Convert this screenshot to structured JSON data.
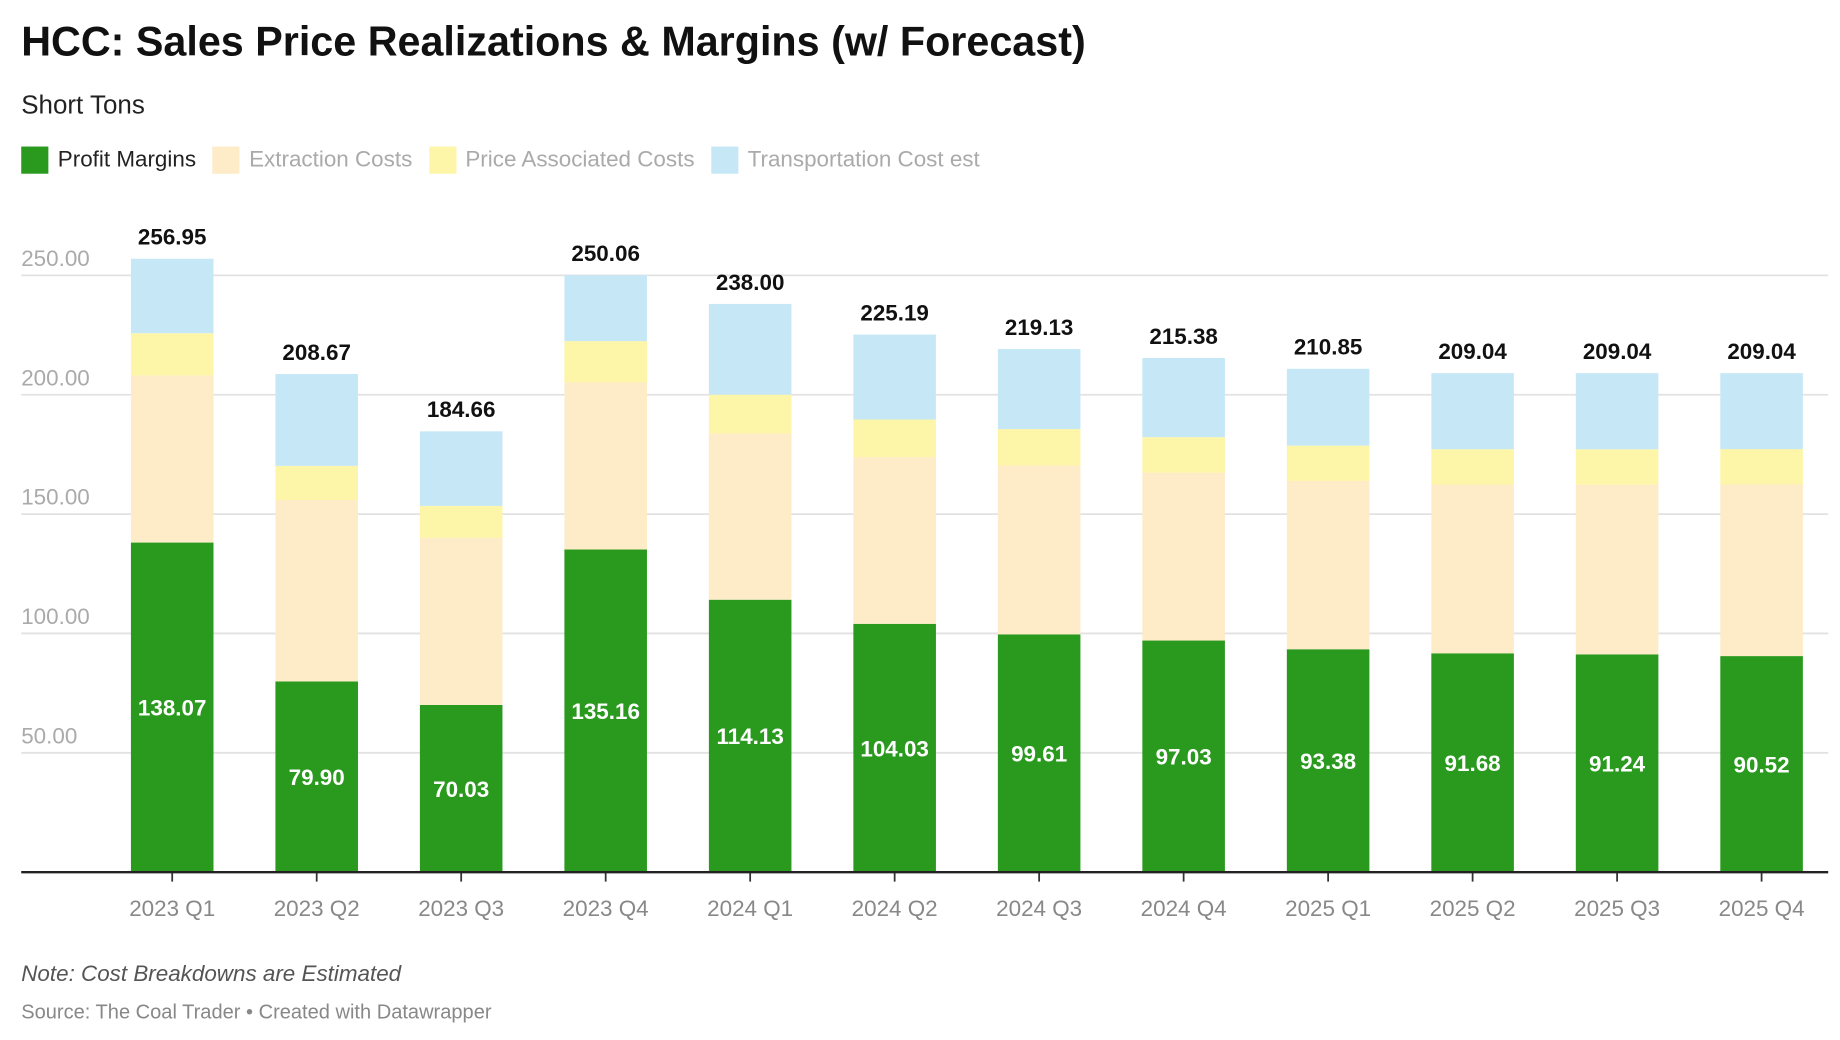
{
  "title": "HCC: Sales Price Realizations & Margins (w/ Forecast)",
  "subtitle": "Short Tons",
  "note": "Note: Cost Breakdowns are Estimated",
  "source": "Source: The Coal Trader • Created with Datawrapper",
  "chart_data": {
    "type": "bar",
    "stacked": true,
    "categories": [
      "2023 Q1",
      "2023 Q2",
      "2023 Q3",
      "2023 Q4",
      "2024 Q1",
      "2024 Q2",
      "2024 Q3",
      "2024 Q4",
      "2025 Q1",
      "2025 Q2",
      "2025 Q3",
      "2025 Q4"
    ],
    "series": [
      {
        "name": "Profit Margins",
        "color": "#2a9a1f",
        "active": true,
        "values": [
          138.07,
          79.9,
          70.03,
          135.16,
          114.13,
          104.03,
          99.61,
          97.03,
          93.38,
          91.68,
          91.24,
          90.52
        ],
        "labels": [
          "138.07",
          "79.90",
          "70.03",
          "135.16",
          "114.13",
          "104.03",
          "99.61",
          "97.03",
          "93.38",
          "91.68",
          "91.24",
          "90.52"
        ]
      },
      {
        "name": "Extraction Costs",
        "color": "#feebc8",
        "active": false,
        "values": [
          70,
          76,
          70,
          70,
          69.6,
          69.8,
          70.7,
          70.3,
          70.5,
          70.7,
          71.1,
          71.9
        ]
      },
      {
        "name": "Price Associated Costs",
        "color": "#fdf5a8",
        "active": false,
        "values": [
          17.7,
          14.3,
          13.4,
          17.3,
          16.3,
          15.8,
          15.3,
          14.9,
          14.8,
          14.8,
          14.8,
          14.8
        ]
      },
      {
        "name": "Transportation Cost est",
        "color": "#c6e8f6",
        "active": false,
        "values": [
          31.18,
          38.47,
          31.23,
          27.6,
          38.0,
          35.56,
          33.52,
          33.15,
          32.17,
          31.86,
          31.9,
          31.82
        ]
      }
    ],
    "totals": [
      "256.95",
      "208.67",
      "184.66",
      "250.06",
      "238.00",
      "225.19",
      "219.13",
      "215.38",
      "210.85",
      "209.04",
      "209.04",
      "209.04"
    ],
    "yticks": [
      "50.00",
      "100.00",
      "150.00",
      "200.00",
      "250.00"
    ],
    "ytick_values": [
      50,
      100,
      150,
      200,
      250
    ],
    "ylim": [
      0,
      260
    ],
    "grid": true,
    "legend_placement": "top-left",
    "xlabel": "",
    "ylabel": ""
  }
}
